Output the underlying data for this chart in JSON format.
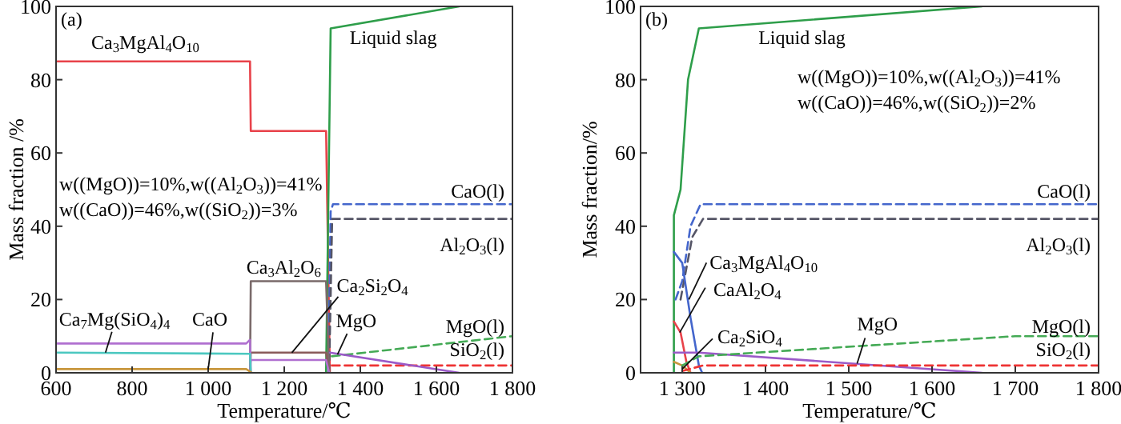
{
  "chart_data": [
    {
      "type": "line",
      "title": "(a)",
      "xlabel": "Temperature/℃",
      "ylabel": "Mass fraction /%",
      "xlim": [
        600,
        1800
      ],
      "xticks": [
        600,
        800,
        {
          "value": 1000,
          "label": "1 000"
        },
        {
          "value": 1200,
          "label": "1 200"
        },
        {
          "value": 1400,
          "label": "1 400"
        },
        {
          "value": 1600,
          "label": "1 600"
        },
        {
          "value": 1800,
          "label": "1 800"
        }
      ],
      "ylim": [
        0,
        100
      ],
      "yticks": [
        0,
        20,
        40,
        60,
        80,
        100
      ],
      "series": [
        {
          "color": "#e8424a",
          "line_style": "solid",
          "x": [
            600,
            1110,
            1112,
            1310,
            1320
          ],
          "values": [
            85,
            85,
            66,
            66,
            0
          ]
        },
        {
          "color": "#2e9e4a",
          "line_style": "solid",
          "x": [
            1310,
            1322,
            1660
          ],
          "values": [
            0,
            94,
            100
          ]
        },
        {
          "color": "#4466cc",
          "line_style": "dashed",
          "x": [
            1316,
            1322,
            1328,
            1800
          ],
          "values": [
            0,
            44,
            46,
            46
          ]
        },
        {
          "color": "#555566",
          "line_style": "dashed",
          "x": [
            1318,
            1326,
            1800
          ],
          "values": [
            0,
            42,
            42
          ]
        },
        {
          "color": "#44aa55",
          "line_style": "dashed",
          "x": [
            1325,
            1800
          ],
          "values": [
            4.5,
            10
          ]
        },
        {
          "color": "#ee3333",
          "line_style": "dashed",
          "x": [
            1325,
            1800
          ],
          "values": [
            2,
            2
          ]
        },
        {
          "color": "#7a6a6a",
          "line_style": "solid",
          "x": [
            1110,
            1112,
            1310,
            1318
          ],
          "values": [
            0,
            25,
            25,
            0
          ]
        },
        {
          "color": "#8a5a5a",
          "line_style": "solid",
          "x": [
            1110,
            1112,
            1310,
            1318
          ],
          "values": [
            0,
            5.5,
            5.5,
            0
          ]
        },
        {
          "color": "#b070d0",
          "line_style": "solid",
          "x": [
            1110,
            1112,
            1310,
            1318
          ],
          "values": [
            0,
            3.5,
            3.5,
            0
          ]
        },
        {
          "color": "#9a5ac8",
          "line_style": "solid",
          "x": [
            1320,
            1660
          ],
          "values": [
            5.5,
            0
          ]
        },
        {
          "color": "#b070d0",
          "line_style": "solid",
          "x": [
            600,
            1100,
            1110,
            1112
          ],
          "values": [
            8,
            8,
            9,
            0
          ]
        },
        {
          "color": "#4cc8c0",
          "line_style": "solid",
          "x": [
            600,
            1110,
            1112
          ],
          "values": [
            5.5,
            5.2,
            0
          ]
        },
        {
          "color": "#c8963c",
          "line_style": "solid",
          "x": [
            600,
            1100,
            1115
          ],
          "values": [
            1,
            1,
            0
          ]
        }
      ],
      "annotations": [
        {
          "text": "Ca$_{3}$MgAl$_{4}$O$_{10}$",
          "x": 760,
          "y": 85
        },
        {
          "text": "Liquid slag",
          "x": 1330,
          "y": 94
        },
        "w((MgO))=10%,w((Al$_{2}$O$_{3}$))=41%",
        "w((CaO))=46%,w((SiO$_{2}$))=3%",
        {
          "text": "CaO(l)",
          "x": 1800,
          "y": 46
        },
        {
          "text": "Al$_{2}$O$_{3}$(l)",
          "x": 1800,
          "y": 42
        },
        {
          "text": "Ca$_{3}$Al$_{2}$O$_{6}$",
          "x": 1210,
          "y": 25
        },
        {
          "text": "Ca$_{2}$Si$_{2}$O$_{4}$",
          "x": 1220,
          "y": 5.5
        },
        {
          "text": "MgO",
          "x": 1340,
          "y": 5
        },
        {
          "text": "MgO(l)",
          "x": 1800,
          "y": 10
        },
        {
          "text": "SiO$_{2}$(l)",
          "x": 1800,
          "y": 2
        },
        {
          "text": "Ca$_{7}$Mg(SiO$_{4}$)$_{4}$",
          "x": 730,
          "y": 5.5
        },
        {
          "text": "CaO",
          "x": 1000,
          "y": 1
        }
      ]
    },
    {
      "type": "line",
      "title": "(b)",
      "xlabel": "Temperature/℃",
      "ylabel": "Mass fraction/%",
      "xlim": [
        1250,
        1800
      ],
      "xticks": [
        {
          "value": 1300,
          "label": "1 300"
        },
        {
          "value": 1400,
          "label": "1 400"
        },
        {
          "value": 1500,
          "label": "1 500"
        },
        {
          "value": 1600,
          "label": "1 600"
        },
        {
          "value": 1700,
          "label": "1 700"
        },
        {
          "value": 1800,
          "label": "1 800"
        }
      ],
      "ylim": [
        0,
        100
      ],
      "yticks": [
        0,
        20,
        40,
        60,
        80,
        100
      ],
      "series": [
        {
          "color": "#2e9e4a",
          "line_style": "solid",
          "x": [
            1290,
            1290,
            1298,
            1307,
            1320,
            1660
          ],
          "values": [
            0,
            43,
            50,
            80,
            94,
            100
          ]
        },
        {
          "color": "#4466cc",
          "line_style": "dashed",
          "x": [
            1292,
            1300,
            1310,
            1322,
            1800
          ],
          "values": [
            20,
            25,
            40,
            46,
            46
          ]
        },
        {
          "color": "#555566",
          "line_style": "dashed",
          "x": [
            1298,
            1312,
            1325,
            1800
          ],
          "values": [
            20,
            37,
            42,
            42
          ]
        },
        {
          "color": "#4466cc",
          "line_style": "solid",
          "x": [
            1290,
            1300,
            1310,
            1320,
            1324
          ],
          "values": [
            33,
            30,
            15,
            2,
            0
          ]
        },
        {
          "color": "#e8424a",
          "line_style": "solid",
          "x": [
            1290,
            1298,
            1305,
            1310
          ],
          "values": [
            14,
            11,
            3,
            0
          ]
        },
        {
          "color": "#c8963c",
          "line_style": "solid",
          "x": [
            1290,
            1300,
            1310
          ],
          "values": [
            3,
            2,
            0
          ]
        },
        {
          "color": "#9a5ac8",
          "line_style": "solid",
          "x": [
            1290,
            1320,
            1660
          ],
          "values": [
            5.5,
            5.5,
            0
          ]
        },
        {
          "color": "#44aa55",
          "line_style": "dashed",
          "x": [
            1300,
            1320,
            1700,
            1800
          ],
          "values": [
            2,
            4.5,
            10,
            10
          ]
        },
        {
          "color": "#ee3333",
          "line_style": "dashed",
          "x": [
            1300,
            1325,
            1800
          ],
          "values": [
            0.5,
            2,
            2
          ]
        }
      ],
      "annotations": [
        {
          "text": "Liquid slag",
          "x": 1330,
          "y": 94
        },
        "w((MgO))=10%,w((Al$_{2}$O$_{3}$))=41%",
        "w((CaO))=46%,w((SiO$_{2}$))=2%",
        {
          "text": "CaO(l)",
          "x": 1800,
          "y": 46
        },
        {
          "text": "Al$_{2}$O$_{3}$(l)",
          "x": 1800,
          "y": 42
        },
        {
          "text": "Ca$_{3}$MgAl$_{4}$O$_{10}$",
          "x": 1308,
          "y": 20
        },
        {
          "text": "CaAl$_{2}$O$_{4}$",
          "x": 1297,
          "y": 11
        },
        {
          "text": "Ca$_{2}$SiO$_{4}$",
          "x": 1300,
          "y": 1
        },
        {
          "text": "MgO",
          "x": 1510,
          "y": 2.5
        },
        {
          "text": "MgO(l)",
          "x": 1800,
          "y": 10
        },
        {
          "text": "SiO$_{2}$(l)",
          "x": 1800,
          "y": 2
        }
      ]
    }
  ]
}
